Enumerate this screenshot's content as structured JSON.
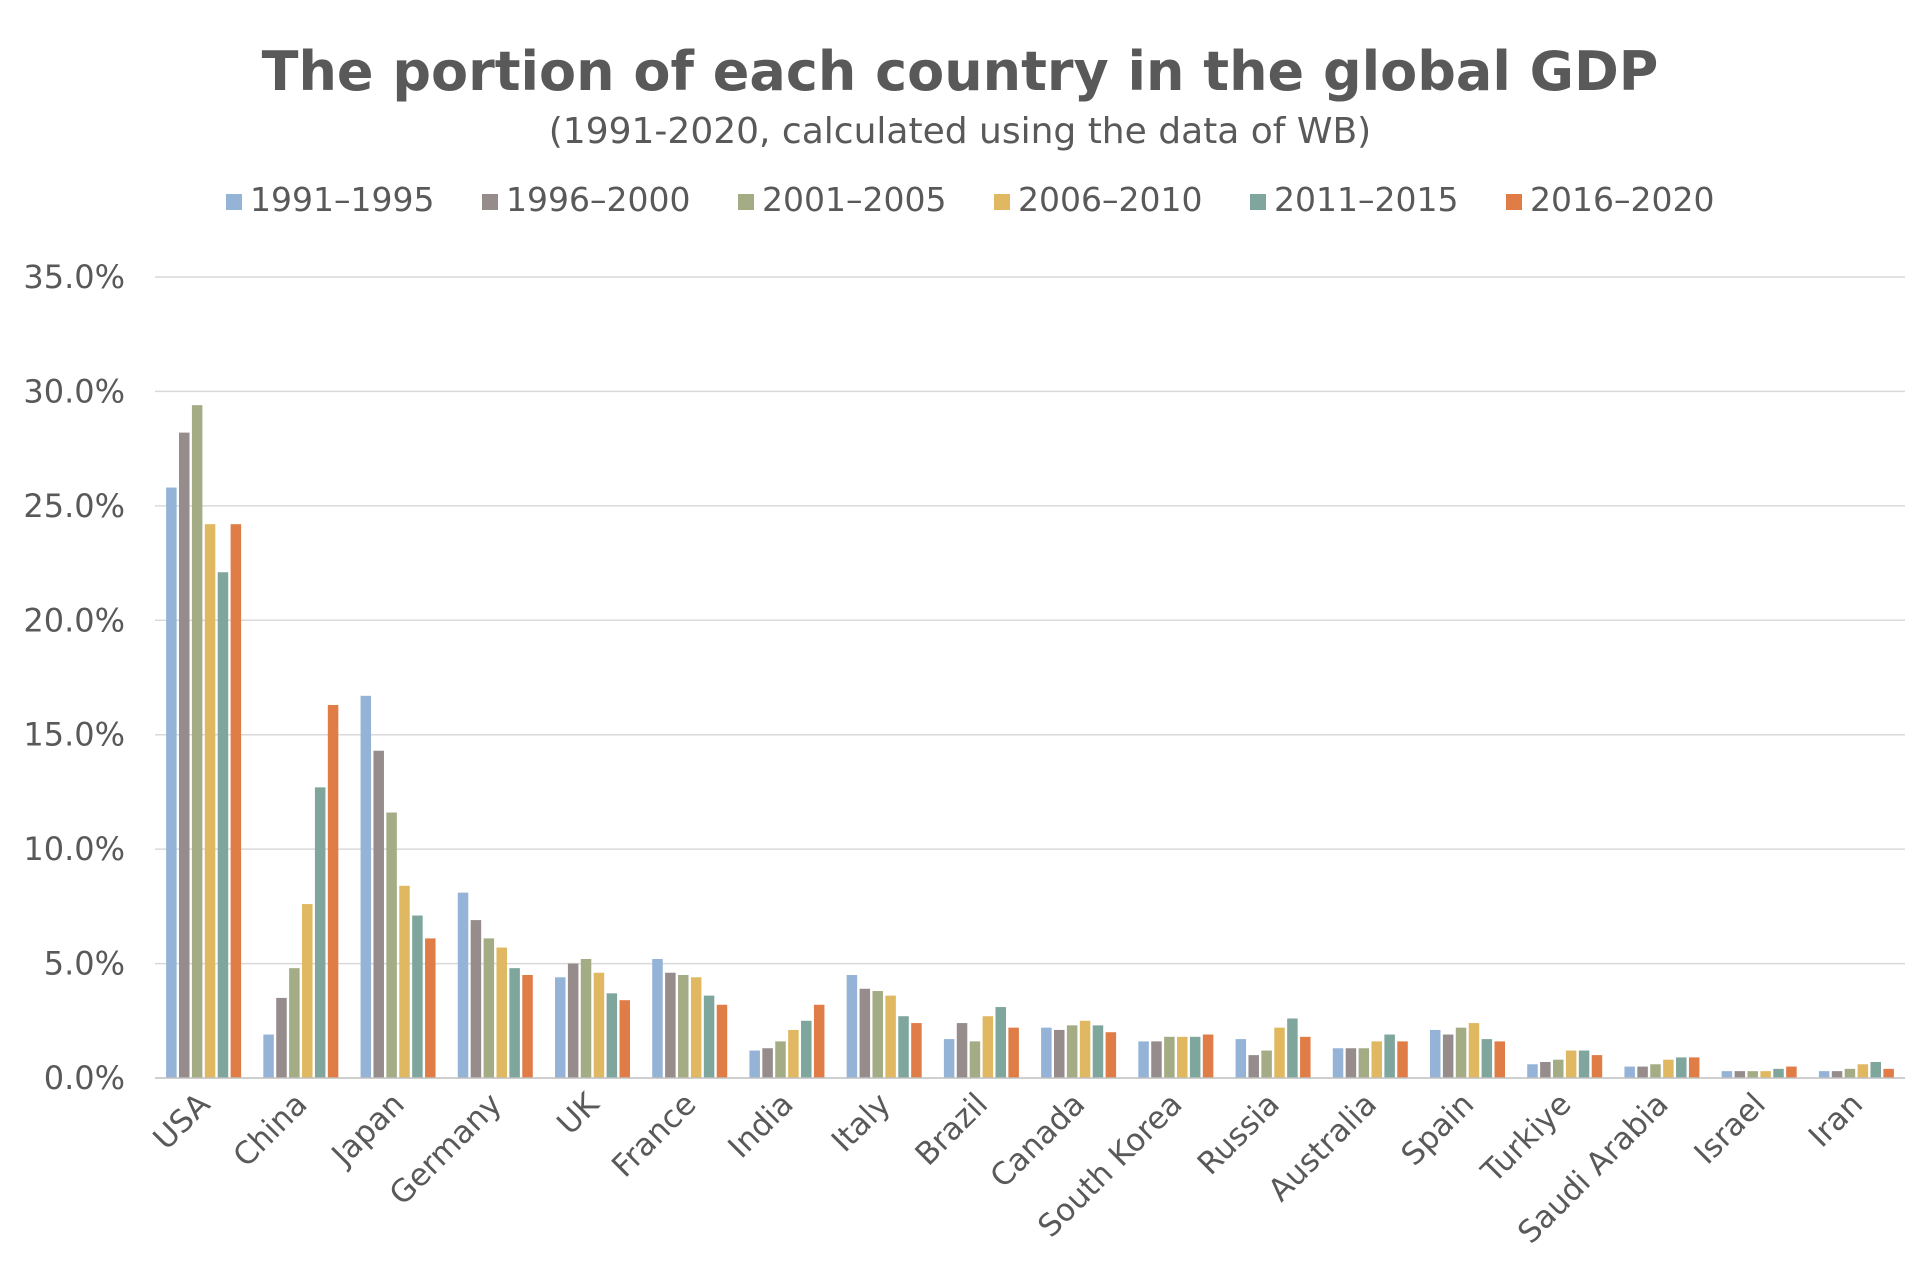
{
  "chart_data": {
    "type": "bar",
    "title": "The portion of each country in the global GDP",
    "subtitle": "(1991-2020, calculated using the data of WB)",
    "ylim": [
      0,
      35
    ],
    "ytick_labels": [
      "0.0%",
      "5.0%",
      "10.0%",
      "15.0%",
      "20.0%",
      "25.0%",
      "30.0%",
      "35.0%"
    ],
    "grid": true,
    "legend_position": "top",
    "categories": [
      "USA",
      "China",
      "Japan",
      "Germany",
      "UK",
      "France",
      "India",
      "Italy",
      "Brazil",
      "Canada",
      "South Korea",
      "Russia",
      "Australia",
      "Spain",
      "Turkiye",
      "Saudi Arabia",
      "Israel",
      "Iran"
    ],
    "series": [
      {
        "name": "1991–1995",
        "color": "#95b3d7",
        "values": [
          25.8,
          1.9,
          16.7,
          8.1,
          4.4,
          5.2,
          1.2,
          4.5,
          1.7,
          2.2,
          1.6,
          1.7,
          1.3,
          2.1,
          0.6,
          0.5,
          0.3,
          0.3
        ]
      },
      {
        "name": "1996–2000",
        "color": "#968c8c",
        "values": [
          28.2,
          3.5,
          14.3,
          6.9,
          5.0,
          4.6,
          1.3,
          3.9,
          2.4,
          2.1,
          1.6,
          1.0,
          1.3,
          1.9,
          0.7,
          0.5,
          0.3,
          0.3
        ]
      },
      {
        "name": "2001–2005",
        "color": "#a4ac86",
        "values": [
          29.4,
          4.8,
          11.6,
          6.1,
          5.2,
          4.5,
          1.6,
          3.8,
          1.6,
          2.3,
          1.8,
          1.2,
          1.3,
          2.2,
          0.8,
          0.6,
          0.3,
          0.4
        ]
      },
      {
        "name": "2006–2010",
        "color": "#e0b862",
        "values": [
          24.2,
          7.6,
          8.4,
          5.7,
          4.6,
          4.4,
          2.1,
          3.6,
          2.7,
          2.5,
          1.8,
          2.2,
          1.6,
          2.4,
          1.2,
          0.8,
          0.3,
          0.6
        ]
      },
      {
        "name": "2011–2015",
        "color": "#7fa69c",
        "values": [
          22.1,
          12.7,
          7.1,
          4.8,
          3.7,
          3.6,
          2.5,
          2.7,
          3.1,
          2.3,
          1.8,
          2.6,
          1.9,
          1.7,
          1.2,
          0.9,
          0.4,
          0.7
        ]
      },
      {
        "name": "2016–2020",
        "color": "#e07c45",
        "values": [
          24.2,
          16.3,
          6.1,
          4.5,
          3.4,
          3.2,
          3.2,
          2.4,
          2.2,
          2.0,
          1.9,
          1.8,
          1.6,
          1.6,
          1.0,
          0.9,
          0.5,
          0.4
        ]
      }
    ]
  }
}
